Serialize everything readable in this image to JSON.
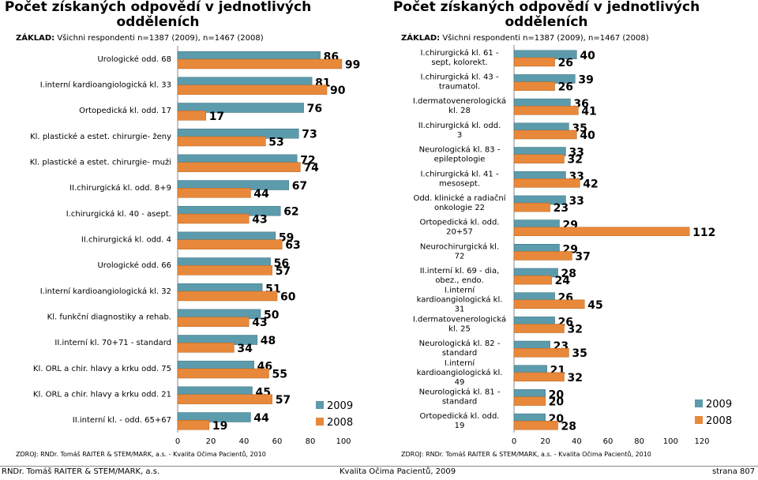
{
  "colors": {
    "series_2009": "#5b9bac",
    "series_2008": "#e8883a",
    "bar_border": "#3d6f7d",
    "bar_border_2008": "#b8641e",
    "axis": "#888888"
  },
  "left_panel": {
    "title": "Počet získaných odpovědí v jednotlivých odděleních",
    "base_label": "ZÁKLAD:",
    "base_text": " Všichni respondenti n=1387 (2009), n=1467 (2008)",
    "source": "ZDROJ: RNDr. Tomáš RAITER & STEM/MARK, a.s. -  Kvalita Očima Pacientů, 2010"
  },
  "right_panel": {
    "title": "Počet získaných odpovědí v jednotlivých odděleních",
    "base_label": "ZÁKLAD:",
    "base_text": " Všichni respondenti n=1387 (2009), n=1467 (2008)",
    "source": "ZDROJ: RNDr. Tomáš RAITER & STEM/MARK, a.s. -  Kvalita Očima Pacientů, 2010"
  },
  "footer": {
    "left": "RNDr. Tomáš RAITER & STEM/MARK, a.s.",
    "center": "Kvalita Očima Pacientů, 2009",
    "right": "strana 807"
  },
  "chart_data": [
    {
      "type": "bar",
      "orientation": "horizontal",
      "title": "Počet získaných odpovědí v jednotlivých odděleních",
      "xlim": [
        0,
        100
      ],
      "xticks": [
        "0",
        "20",
        "40",
        "60",
        "80",
        "100"
      ],
      "legend": [
        "2009",
        "2008"
      ],
      "legend_position": "bottom-right",
      "categories": [
        [
          "Urologické odd. 68"
        ],
        [
          "I.interní kardioangiologická kl. 33"
        ],
        [
          "Ortopedická kl. odd. 17"
        ],
        [
          "Kl. plastické a estet. chirurgie- ženy"
        ],
        [
          "Kl. plastické a estet. chirurgie- muži"
        ],
        [
          "II.chirurgická kl.  odd. 8+9"
        ],
        [
          "I.chirurgická kl.  40 - asept."
        ],
        [
          "II.chirurgická kl.  odd. 4"
        ],
        [
          "Urologické odd. 66"
        ],
        [
          "I.interní kardioangiologická kl.  32"
        ],
        [
          "Kl. funkční diagnostiky a rehab."
        ],
        [
          "II.interní kl.  70+71 - standard"
        ],
        [
          "Kl. ORL a chir. hlavy a krku odd. 75"
        ],
        [
          "Kl. ORL a chir. hlavy a krku odd. 21"
        ],
        [
          "II.interní kl.  - odd. 65+67"
        ]
      ],
      "series": [
        {
          "name": "2009",
          "values": [
            86,
            81,
            76,
            73,
            72,
            67,
            62,
            59,
            56,
            51,
            50,
            48,
            46,
            45,
            44
          ]
        },
        {
          "name": "2008",
          "values": [
            99,
            90,
            17,
            53,
            74,
            44,
            43,
            63,
            57,
            60,
            43,
            34,
            55,
            57,
            19
          ]
        }
      ]
    },
    {
      "type": "bar",
      "orientation": "horizontal",
      "title": "Počet získaných odpovědí v jednotlivých odděleních",
      "xlim": [
        0,
        120
      ],
      "xticks": [
        "0",
        "20",
        "40",
        "60",
        "80",
        "100",
        "120"
      ],
      "legend": [
        "2009",
        "2008"
      ],
      "legend_position": "bottom-right",
      "categories": [
        [
          "I.chirurgická kl.  61 -",
          "sept, kolorekt."
        ],
        [
          "I.chirurgická kl.  43 -",
          "traumatol."
        ],
        [
          "I.dermatovenerologická",
          "kl.  28"
        ],
        [
          "II.chirurgická kl.  odd.",
          "3"
        ],
        [
          "Neurologická kl.  83 -",
          "epileptologie"
        ],
        [
          "I.chirurgická kl.  41 -",
          "mesosept."
        ],
        [
          "Odd. klinické a radiační",
          "onkologie 22"
        ],
        [
          "Ortopedická kl.  odd.",
          "20+57"
        ],
        [
          "Neurochirurgická kl.",
          "72"
        ],
        [
          "II.interní kl.  69 - dia,",
          "obez., endo."
        ],
        [
          "I.interní",
          "kardioangiologická kl.",
          "31"
        ],
        [
          "I.dermatovenerologická",
          "kl.  25"
        ],
        [
          "Neurologická kl.  82 -",
          "standard"
        ],
        [
          "I.interní",
          "kardioangiologická kl.",
          "49"
        ],
        [
          "Neurologická kl.  81 -",
          "standard"
        ],
        [
          "Ortopedická kl.  odd.",
          "19"
        ]
      ],
      "series": [
        {
          "name": "2009",
          "values": [
            40,
            39,
            36,
            35,
            33,
            33,
            33,
            29,
            29,
            28,
            26,
            26,
            23,
            21,
            20,
            20
          ]
        },
        {
          "name": "2008",
          "values": [
            26,
            26,
            41,
            40,
            32,
            42,
            23,
            112,
            37,
            24,
            45,
            32,
            35,
            32,
            20,
            28
          ]
        }
      ]
    }
  ]
}
